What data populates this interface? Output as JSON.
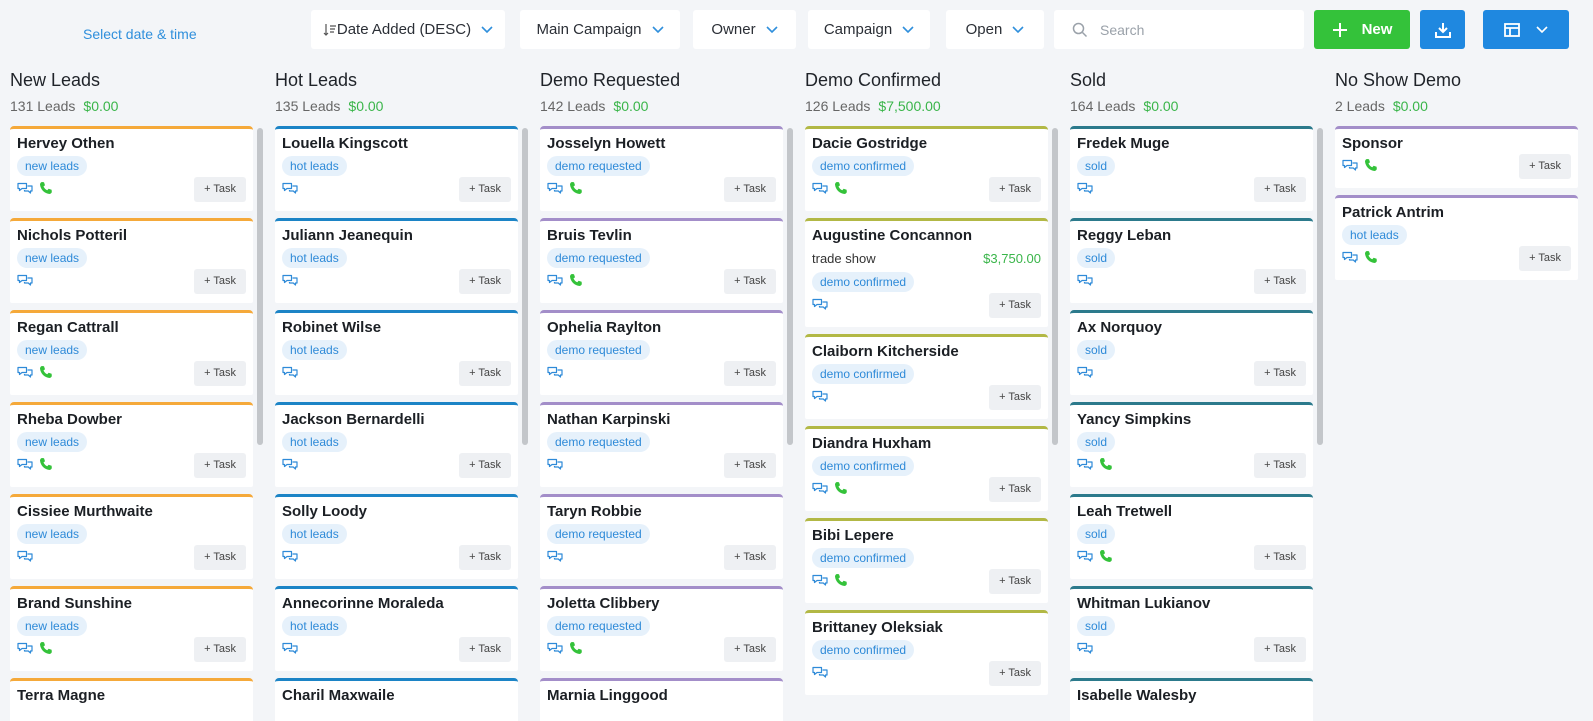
{
  "header": {
    "date_link": "Select date & time",
    "sort": "Date Added (DESC)",
    "filters": [
      "Main Campaign",
      "Owner",
      "Campaign",
      "Open"
    ],
    "search_placeholder": "Search",
    "new_label": "New"
  },
  "colors": {
    "new_leads": "#f5a93a",
    "hot_leads": "#1c84c6",
    "demo_requested": "#a38ec9",
    "demo_confirmed": "#b2b845",
    "sold": "#2c7a8c",
    "no_show": "#a38ec9"
  },
  "columns": [
    {
      "title": "New Leads",
      "count": "131 Leads",
      "amount": "$0.00",
      "cards": [
        {
          "name": "Hervey Othen",
          "tag": "new leads",
          "phone": true
        },
        {
          "name": "Nichols Potteril",
          "tag": "new leads",
          "phone": false
        },
        {
          "name": "Regan Cattrall",
          "tag": "new leads",
          "phone": true
        },
        {
          "name": "Rheba Dowber",
          "tag": "new leads",
          "phone": true
        },
        {
          "name": "Cissiee Murthwaite",
          "tag": "new leads",
          "phone": false
        },
        {
          "name": "Brand Sunshine",
          "tag": "new leads",
          "phone": true
        },
        {
          "name": "Terra Magne",
          "tag": "",
          "phone": false
        }
      ]
    },
    {
      "title": "Hot Leads",
      "count": "135 Leads",
      "amount": "$0.00",
      "cards": [
        {
          "name": "Louella Kingscott",
          "tag": "hot leads",
          "phone": false
        },
        {
          "name": "Juliann Jeanequin",
          "tag": "hot leads",
          "phone": false
        },
        {
          "name": "Robinet Wilse",
          "tag": "hot leads",
          "phone": false
        },
        {
          "name": "Jackson Bernardelli",
          "tag": "hot leads",
          "phone": false
        },
        {
          "name": "Solly Loody",
          "tag": "hot leads",
          "phone": false
        },
        {
          "name": "Annecorinne Moraleda",
          "tag": "hot leads",
          "phone": false
        },
        {
          "name": "Charil Maxwaile",
          "tag": "",
          "phone": false
        }
      ]
    },
    {
      "title": "Demo Requested",
      "count": "142 Leads",
      "amount": "$0.00",
      "cards": [
        {
          "name": "Josselyn Howett",
          "tag": "demo requested",
          "phone": true
        },
        {
          "name": "Bruis Tevlin",
          "tag": "demo requested",
          "phone": true
        },
        {
          "name": "Ophelia Raylton",
          "tag": "demo requested",
          "phone": false
        },
        {
          "name": "Nathan Karpinski",
          "tag": "demo requested",
          "phone": false
        },
        {
          "name": "Taryn Robbie",
          "tag": "demo requested",
          "phone": false
        },
        {
          "name": "Joletta Clibbery",
          "tag": "demo requested",
          "phone": true
        },
        {
          "name": "Marnia Linggood",
          "tag": "",
          "phone": false
        }
      ]
    },
    {
      "title": "Demo Confirmed",
      "count": "126 Leads",
      "amount": "$7,500.00",
      "cards": [
        {
          "name": "Dacie Gostridge",
          "tag": "demo confirmed",
          "phone": true
        },
        {
          "name": "Augustine Concannon",
          "tag": "demo confirmed",
          "phone": false,
          "source": "trade show",
          "value": "$3,750.00"
        },
        {
          "name": "Claiborn Kitcherside",
          "tag": "demo confirmed",
          "phone": false
        },
        {
          "name": "Diandra Huxham",
          "tag": "demo confirmed",
          "phone": true
        },
        {
          "name": "Bibi Lepere",
          "tag": "demo confirmed",
          "phone": true
        },
        {
          "name": "Brittaney Oleksiak",
          "tag": "demo confirmed",
          "phone": false
        }
      ]
    },
    {
      "title": "Sold",
      "count": "164 Leads",
      "amount": "$0.00",
      "cards": [
        {
          "name": "Fredek Muge",
          "tag": "sold",
          "phone": false
        },
        {
          "name": "Reggy Leban",
          "tag": "sold",
          "phone": false
        },
        {
          "name": "Ax Norquoy",
          "tag": "sold",
          "phone": false
        },
        {
          "name": "Yancy Simpkins",
          "tag": "sold",
          "phone": true
        },
        {
          "name": "Leah Tretwell",
          "tag": "sold",
          "phone": true
        },
        {
          "name": "Whitman Lukianov",
          "tag": "sold",
          "phone": false
        },
        {
          "name": "Isabelle Walesby",
          "tag": "",
          "phone": false
        }
      ]
    },
    {
      "title": "No Show Demo",
      "count": "2 Leads",
      "amount": "$0.00",
      "cards": [
        {
          "name": "Sponsor",
          "tag": "",
          "phone": true
        },
        {
          "name": "Patrick Antrim",
          "tag": "hot leads",
          "phone": true
        }
      ]
    }
  ],
  "task_label": "+ Task"
}
